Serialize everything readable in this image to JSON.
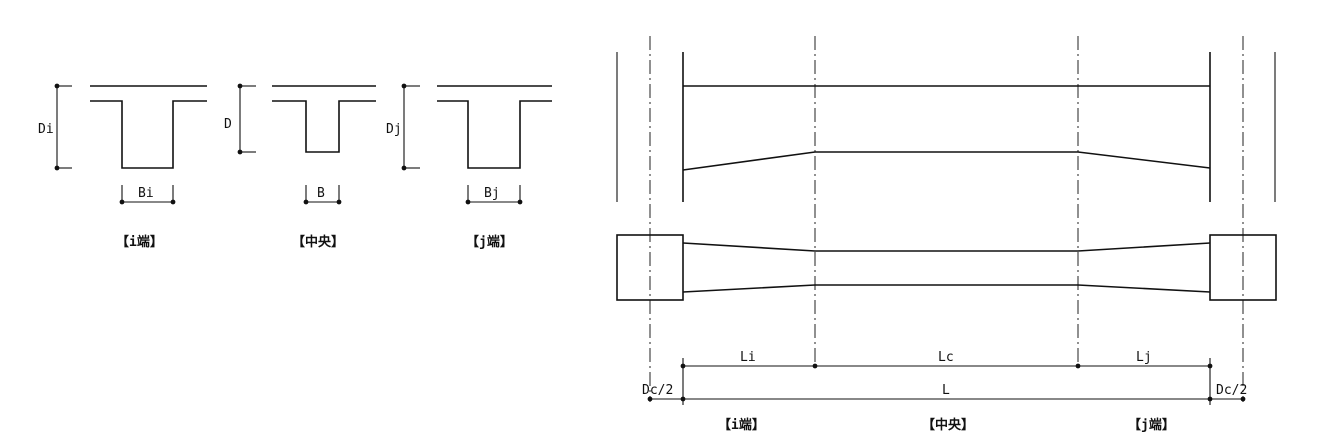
{
  "sections": {
    "i_end": {
      "depth_label": "Di",
      "width_label": "Bi",
      "caption": "【i端】"
    },
    "center": {
      "depth_label": "D",
      "width_label": "B",
      "caption": "【中央】"
    },
    "j_end": {
      "depth_label": "Dj",
      "width_label": "Bj",
      "caption": "【j端】"
    }
  },
  "elevation": {
    "dim_li": "Li",
    "dim_lc": "Lc",
    "dim_lj": "Lj",
    "dim_l": "L",
    "dim_dc_left": "Dc/2",
    "dim_dc_right": "Dc/2",
    "caption_i": "【i端】",
    "caption_center": "【中央】",
    "caption_j": "【j端】"
  }
}
